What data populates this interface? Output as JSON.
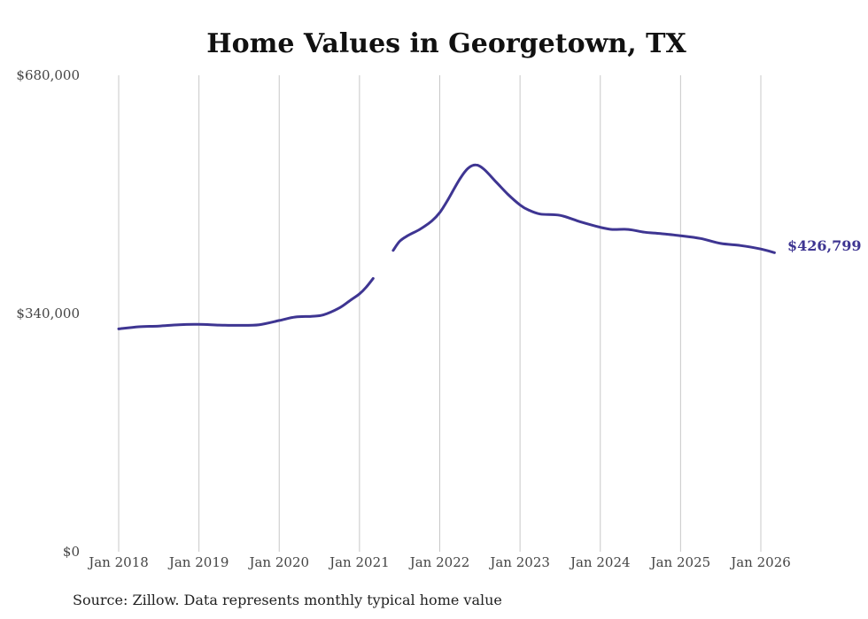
{
  "chart_data": {
    "type": "line",
    "title": "Home Values in Georgetown, TX",
    "ylim": [
      0,
      680000
    ],
    "yticks": [
      {
        "value": 0,
        "label": "$0"
      },
      {
        "value": 340000,
        "label": "$340,000"
      },
      {
        "value": 680000,
        "label": "$680,000"
      }
    ],
    "xlim": [
      2018,
      2026.3
    ],
    "xticks": [
      {
        "value": 2018,
        "label": "Jan 2018"
      },
      {
        "value": 2019,
        "label": "Jan 2019"
      },
      {
        "value": 2020,
        "label": "Jan 2020"
      },
      {
        "value": 2021,
        "label": "Jan 2021"
      },
      {
        "value": 2022,
        "label": "Jan 2022"
      },
      {
        "value": 2023,
        "label": "Jan 2023"
      },
      {
        "value": 2024,
        "label": "Jan 2024"
      },
      {
        "value": 2025,
        "label": "Jan 2025"
      },
      {
        "value": 2026,
        "label": "Jan 2026"
      }
    ],
    "grid": "vertical",
    "series": [
      {
        "name": "Typical home value",
        "color": "#3e3592",
        "segments": [
          [
            [
              2018.0,
              318000
            ],
            [
              2018.25,
              321000
            ],
            [
              2018.5,
              322000
            ],
            [
              2018.75,
              324000
            ],
            [
              2019.0,
              324500
            ],
            [
              2019.25,
              323500
            ],
            [
              2019.5,
              323000
            ],
            [
              2019.75,
              324000
            ],
            [
              2020.0,
              330000
            ],
            [
              2020.2,
              335000
            ],
            [
              2020.4,
              336000
            ],
            [
              2020.55,
              338000
            ],
            [
              2020.75,
              348000
            ],
            [
              2020.9,
              360000
            ],
            [
              2021.0,
              368000
            ],
            [
              2021.08,
              377000
            ],
            [
              2021.17,
              390000
            ]
          ],
          [
            [
              2021.42,
              430000
            ],
            [
              2021.5,
              443000
            ],
            [
              2021.6,
              451000
            ],
            [
              2021.75,
              460000
            ],
            [
              2021.9,
              472000
            ],
            [
              2022.0,
              484000
            ],
            [
              2022.1,
              502000
            ],
            [
              2022.25,
              532000
            ],
            [
              2022.35,
              547000
            ],
            [
              2022.45,
              552000
            ],
            [
              2022.55,
              546000
            ],
            [
              2022.7,
              528000
            ],
            [
              2022.85,
              510000
            ],
            [
              2023.0,
              495000
            ],
            [
              2023.1,
              488000
            ],
            [
              2023.25,
              482000
            ],
            [
              2023.5,
              480000
            ],
            [
              2023.75,
              471000
            ],
            [
              2024.0,
              463000
            ],
            [
              2024.15,
              460000
            ],
            [
              2024.35,
              460000
            ],
            [
              2024.55,
              456000
            ],
            [
              2024.75,
              454000
            ],
            [
              2025.0,
              451000
            ],
            [
              2025.25,
              447000
            ],
            [
              2025.5,
              440000
            ],
            [
              2025.75,
              437000
            ],
            [
              2026.0,
              432000
            ],
            [
              2026.17,
              426799
            ]
          ]
        ]
      }
    ],
    "end_label": "$426,799",
    "source": "Source: Zillow. Data represents monthly typical home value"
  }
}
